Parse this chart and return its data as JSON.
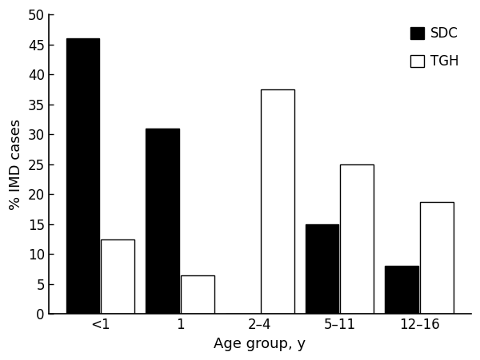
{
  "categories": [
    "<1",
    "1",
    "2–4",
    "5–11",
    "12–16"
  ],
  "sdc_values": [
    46,
    31,
    0,
    15,
    8
  ],
  "tgh_values": [
    12.5,
    6.5,
    37.5,
    25,
    18.75
  ],
  "sdc_color": "#000000",
  "tgh_color": "#ffffff",
  "tgh_edgecolor": "#000000",
  "ylabel": "% IMD cases",
  "xlabel": "Age group, y",
  "ylim": [
    0,
    50
  ],
  "yticks": [
    0,
    5,
    10,
    15,
    20,
    25,
    30,
    35,
    40,
    45,
    50
  ],
  "legend_labels": [
    "SDC",
    "TGH"
  ],
  "bar_width": 0.42,
  "bar_gap": 0.02,
  "background_color": "#ffffff",
  "label_fontsize": 13,
  "tick_fontsize": 12,
  "legend_fontsize": 12,
  "spine_linewidth": 1.2,
  "bar_linewidth": 1.0
}
